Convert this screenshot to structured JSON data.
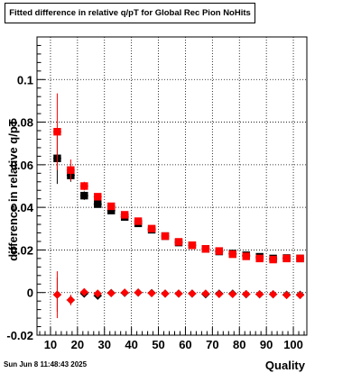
{
  "chart_data": {
    "type": "scatter",
    "title": "Fitted difference in relative q/pT for Global Rec Pion NoHits",
    "xlabel": "Quality",
    "ylabel": "difference in relative q/pT",
    "xlim": [
      5,
      105
    ],
    "ylim": [
      -0.02,
      0.12
    ],
    "x_ticks": [
      10,
      20,
      30,
      40,
      50,
      60,
      70,
      80,
      90,
      100
    ],
    "y_ticks": [
      -0.02,
      0,
      0.02,
      0.04,
      0.06,
      0.08,
      0.1
    ],
    "grid": true,
    "colors": {
      "black_series": "#000000",
      "red_series": "#ff0000"
    },
    "series": [
      {
        "marker": "square",
        "color": "#000000",
        "x": [
          12.5,
          17.5,
          22.5,
          27.5,
          32.5,
          37.5,
          42.5,
          47.5,
          52.5,
          57.5,
          62.5,
          67.5,
          72.5,
          77.5,
          82.5,
          87.5,
          92.5,
          97.5,
          102.5
        ],
        "y": [
          0.063,
          0.055,
          0.0455,
          0.0415,
          0.0385,
          0.0355,
          0.0325,
          0.0295,
          0.0265,
          0.0235,
          0.0222,
          0.0205,
          0.0193,
          0.0183,
          0.0175,
          0.0168,
          0.016,
          0.0162,
          0.016
        ],
        "yerr": [
          0.012,
          0.003,
          0.002,
          0.0015,
          0.001,
          0.001,
          0.001,
          0.001,
          0.001,
          0.001,
          0.001,
          0.001,
          0.001,
          0.001,
          0.001,
          0.001,
          0.001,
          0.001,
          0.001
        ]
      },
      {
        "marker": "square",
        "color": "#ff0000",
        "x": [
          12.5,
          17.5,
          22.5,
          27.5,
          32.5,
          37.5,
          42.5,
          47.5,
          52.5,
          57.5,
          62.5,
          67.5,
          72.5,
          77.5,
          82.5,
          87.5,
          92.5,
          97.5,
          102.5
        ],
        "y": [
          0.0755,
          0.0575,
          0.05,
          0.045,
          0.0405,
          0.0365,
          0.0335,
          0.03,
          0.0265,
          0.0238,
          0.0222,
          0.0205,
          0.0195,
          0.018,
          0.017,
          0.016,
          0.0155,
          0.016,
          0.016
        ],
        "yerr": [
          0.018,
          0.005,
          0.002,
          0.0015,
          0.001,
          0.001,
          0.001,
          0.001,
          0.001,
          0.001,
          0.001,
          0.001,
          0.001,
          0.001,
          0.001,
          0.001,
          0.001,
          0.001,
          0.001
        ]
      },
      {
        "marker": "diamond",
        "color": "#000000",
        "x": [
          12.5,
          17.5,
          22.5,
          27.5,
          32.5,
          37.5,
          42.5,
          47.5,
          52.5,
          57.5,
          62.5,
          67.5,
          72.5,
          77.5,
          82.5,
          87.5,
          92.5,
          97.5,
          102.5
        ],
        "y": [
          -0.001,
          -0.0035,
          -0.0005,
          -0.0015,
          -0.0002,
          -0.0002,
          0.0,
          -0.0002,
          -0.0005,
          -0.0005,
          -0.0005,
          -0.0008,
          -0.0005,
          -0.0005,
          -0.0008,
          -0.0008,
          -0.0008,
          -0.001,
          -0.001
        ],
        "yerr": [
          0.008,
          0.002,
          0.001,
          0.001,
          0.0005,
          0.0005,
          0.0005,
          0.0005,
          0.0005,
          0.0005,
          0.0005,
          0.0005,
          0.0005,
          0.0005,
          0.0005,
          0.0005,
          0.0005,
          0.0005,
          0.0005
        ]
      },
      {
        "marker": "diamond",
        "color": "#ff0000",
        "x": [
          12.5,
          17.5,
          22.5,
          27.5,
          32.5,
          37.5,
          42.5,
          47.5,
          52.5,
          57.5,
          62.5,
          67.5,
          72.5,
          77.5,
          82.5,
          87.5,
          92.5,
          97.5,
          102.5
        ],
        "y": [
          -0.001,
          -0.0035,
          0.0002,
          -0.0005,
          -0.0003,
          0.0,
          0.0,
          -0.0003,
          -0.0005,
          -0.0005,
          -0.0005,
          -0.0005,
          -0.0007,
          -0.0007,
          -0.0007,
          -0.0008,
          -0.0008,
          -0.0012,
          -0.0012
        ],
        "yerr": [
          0.011,
          0.0025,
          0.001,
          0.001,
          0.0005,
          0.0005,
          0.0005,
          0.0005,
          0.0005,
          0.0005,
          0.0005,
          0.0005,
          0.0005,
          0.0005,
          0.0005,
          0.0005,
          0.0005,
          0.0005,
          0.0005
        ]
      }
    ]
  },
  "footer": {
    "timestamp": "Sun Jun  8 11:48:43 2025"
  }
}
